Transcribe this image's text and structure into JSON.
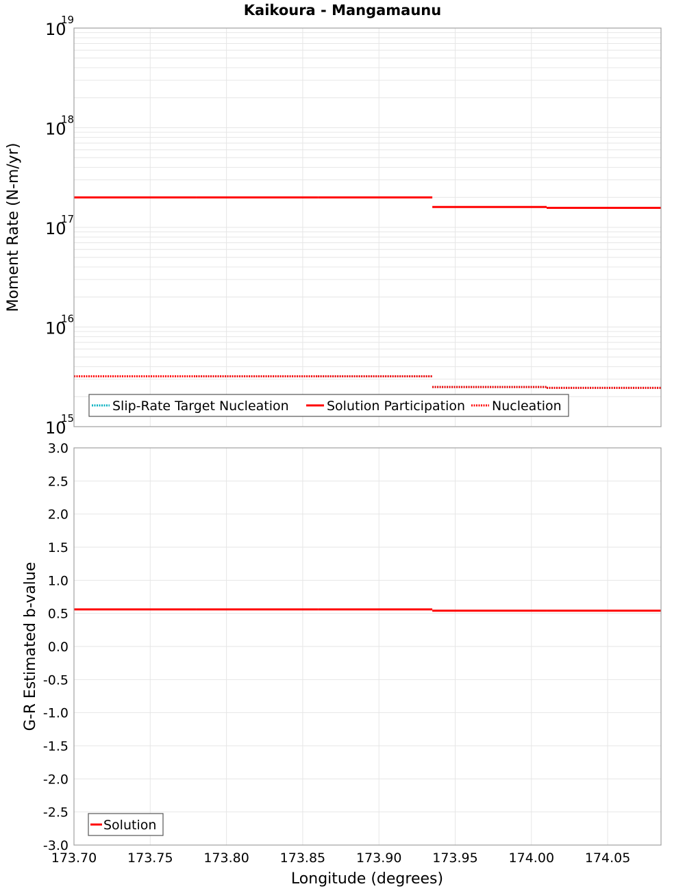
{
  "title": "Kaikoura - Mangamaunu",
  "colors": {
    "solution": "#ff0000",
    "target": "#00b0c0",
    "nucleation": "#ff0000",
    "grid": "#e6e6e6",
    "frame": "#a0a0a0",
    "legend_border": "#555555"
  },
  "chart_data": [
    {
      "type": "line",
      "title": "Kaikoura - Mangamaunu",
      "xlabel": "Longitude (degrees)",
      "ylabel": "Moment Rate (N-m/yr)",
      "yscale": "log",
      "xlim": [
        173.7,
        174.085
      ],
      "ylim": [
        1000000000000000.0,
        1e+19
      ],
      "ytick_exponents": [
        15,
        16,
        17,
        18,
        19
      ],
      "ytick_labels": [
        "10^15",
        "10^16",
        "10^17",
        "10^18",
        "10^19"
      ],
      "grid": true,
      "legend_position": "lower-left",
      "series": [
        {
          "name": "Slip-Rate Target Nucleation",
          "style": "dotted",
          "color": "#00b0c0",
          "segments": [
            {
              "x0": 173.7,
              "x1": 173.78,
              "y": 3200000000000000.0
            },
            {
              "x0": 173.78,
              "x1": 173.86,
              "y": 3200000000000000.0
            },
            {
              "x0": 173.86,
              "x1": 173.935,
              "y": 3200000000000000.0
            },
            {
              "x0": 173.935,
              "x1": 174.01,
              "y": 2500000000000000.0
            },
            {
              "x0": 174.01,
              "x1": 174.085,
              "y": 2450000000000000.0
            }
          ]
        },
        {
          "name": "Solution Participation",
          "style": "solid",
          "color": "#ff0000",
          "segments": [
            {
              "x0": 173.7,
              "x1": 173.78,
              "y": 2e+17
            },
            {
              "x0": 173.78,
              "x1": 173.86,
              "y": 2e+17
            },
            {
              "x0": 173.86,
              "x1": 173.935,
              "y": 2e+17
            },
            {
              "x0": 173.935,
              "x1": 174.01,
              "y": 1.6e+17
            },
            {
              "x0": 174.01,
              "x1": 174.085,
              "y": 1.57e+17
            }
          ]
        },
        {
          "name": "Nucleation",
          "style": "dotted",
          "color": "#ff0000",
          "segments": [
            {
              "x0": 173.7,
              "x1": 173.78,
              "y": 3200000000000000.0
            },
            {
              "x0": 173.78,
              "x1": 173.86,
              "y": 3200000000000000.0
            },
            {
              "x0": 173.86,
              "x1": 173.935,
              "y": 3200000000000000.0
            },
            {
              "x0": 173.935,
              "x1": 174.01,
              "y": 2500000000000000.0
            },
            {
              "x0": 174.01,
              "x1": 174.085,
              "y": 2450000000000000.0
            }
          ]
        }
      ]
    },
    {
      "type": "line",
      "xlabel": "Longitude (degrees)",
      "ylabel": "G-R Estimated b-value",
      "yscale": "linear",
      "xlim": [
        173.7,
        174.085
      ],
      "ylim": [
        -3.0,
        3.0
      ],
      "yticks": [
        3.0,
        2.5,
        2.0,
        1.5,
        1.0,
        0.5,
        0.0,
        -0.5,
        -1.0,
        -1.5,
        -2.0,
        -2.5,
        -3.0
      ],
      "ytick_labels": [
        "3.0",
        "2.5",
        "2.0",
        "1.5",
        "1.0",
        "0.5",
        "0.0",
        "-0.5",
        "-1.0",
        "-1.5",
        "-2.0",
        "-2.5",
        "-3.0"
      ],
      "xticks": [
        173.7,
        173.75,
        173.8,
        173.85,
        173.9,
        173.95,
        174.0,
        174.05
      ],
      "xtick_labels": [
        "173.70",
        "173.75",
        "173.80",
        "173.85",
        "173.90",
        "173.95",
        "174.00",
        "174.05"
      ],
      "grid": true,
      "legend_position": "lower-left",
      "series": [
        {
          "name": "Solution",
          "style": "solid",
          "color": "#ff0000",
          "segments": [
            {
              "x0": 173.7,
              "x1": 173.78,
              "y": 0.56
            },
            {
              "x0": 173.78,
              "x1": 173.86,
              "y": 0.56
            },
            {
              "x0": 173.86,
              "x1": 173.935,
              "y": 0.56
            },
            {
              "x0": 173.935,
              "x1": 174.01,
              "y": 0.54
            },
            {
              "x0": 174.01,
              "x1": 174.085,
              "y": 0.54
            }
          ]
        }
      ]
    }
  ]
}
